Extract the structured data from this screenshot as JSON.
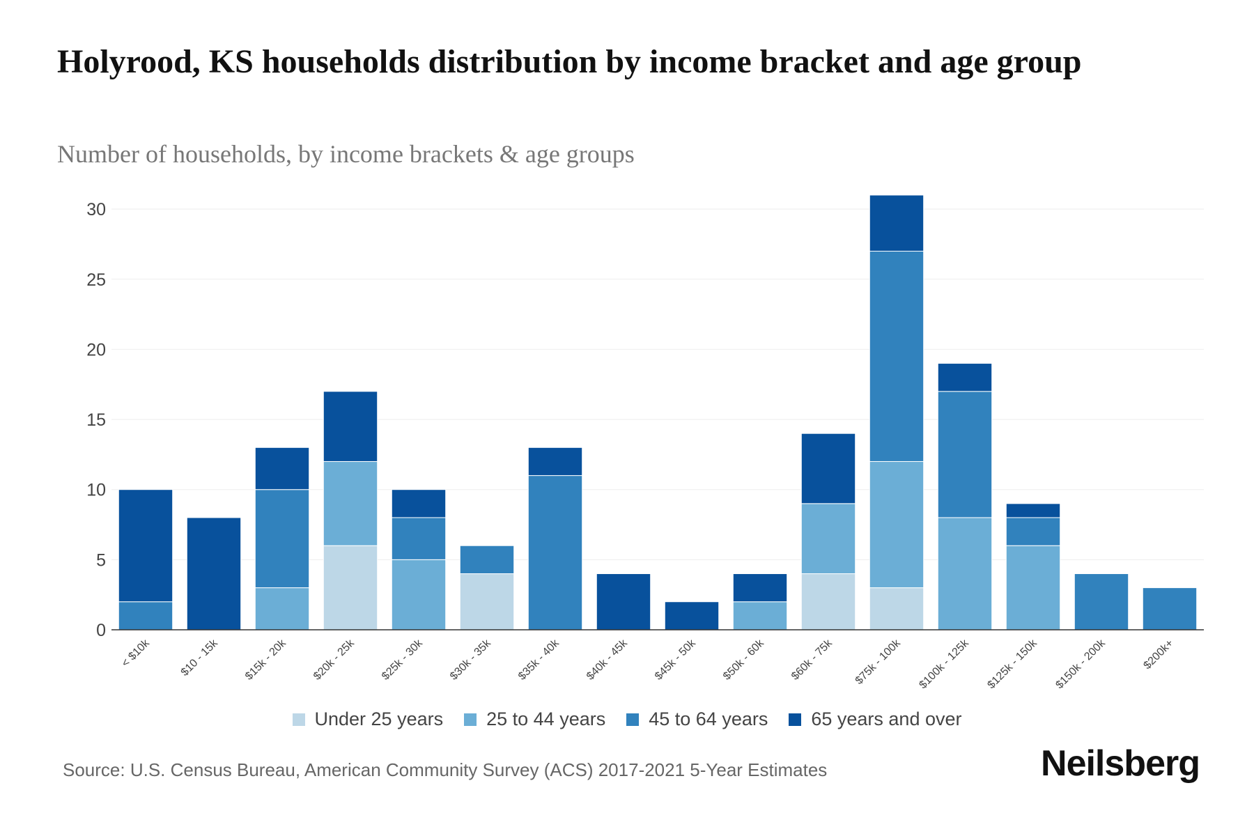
{
  "title": "Holyrood, KS households distribution by income bracket and age group",
  "subtitle": "Number of households, by income brackets & age groups",
  "source": "Source: U.S. Census Bureau, American Community Survey (ACS) 2017-2021 5-Year Estimates",
  "brand": "Neilsberg",
  "chart_data": {
    "type": "bar",
    "stacked": true,
    "title": "Holyrood, KS households distribution by income bracket and age group",
    "xlabel": "",
    "ylabel": "",
    "ylim": [
      0,
      31
    ],
    "yticks": [
      0,
      5,
      10,
      15,
      20,
      25,
      30
    ],
    "grid": true,
    "legend_position": "bottom",
    "categories": [
      "< $10k",
      "$10 - 15k",
      "$15k - 20k",
      "$20k - 25k",
      "$25k - 30k",
      "$30k - 35k",
      "$35k - 40k",
      "$40k - 45k",
      "$45k - 50k",
      "$50k - 60k",
      "$60k - 75k",
      "$75k - 100k",
      "$100k - 125k",
      "$125k - 150k",
      "$150k - 200k",
      "$200k+"
    ],
    "series": [
      {
        "name": "Under 25 years",
        "color": "#bdd7e7",
        "values": [
          0,
          0,
          0,
          6,
          0,
          4,
          0,
          0,
          0,
          0,
          4,
          3,
          0,
          0,
          0,
          0
        ]
      },
      {
        "name": "25 to 44 years",
        "color": "#6baed6",
        "values": [
          0,
          0,
          3,
          6,
          5,
          0,
          0,
          0,
          0,
          2,
          5,
          9,
          8,
          6,
          0,
          0
        ]
      },
      {
        "name": "45 to 64 years",
        "color": "#3182bd",
        "values": [
          2,
          0,
          7,
          0,
          3,
          2,
          11,
          0,
          0,
          0,
          0,
          15,
          9,
          2,
          4,
          3
        ]
      },
      {
        "name": "65 years and over",
        "color": "#08519c",
        "values": [
          8,
          8,
          3,
          5,
          2,
          0,
          2,
          4,
          2,
          2,
          5,
          4,
          2,
          1,
          0,
          0
        ]
      }
    ]
  }
}
